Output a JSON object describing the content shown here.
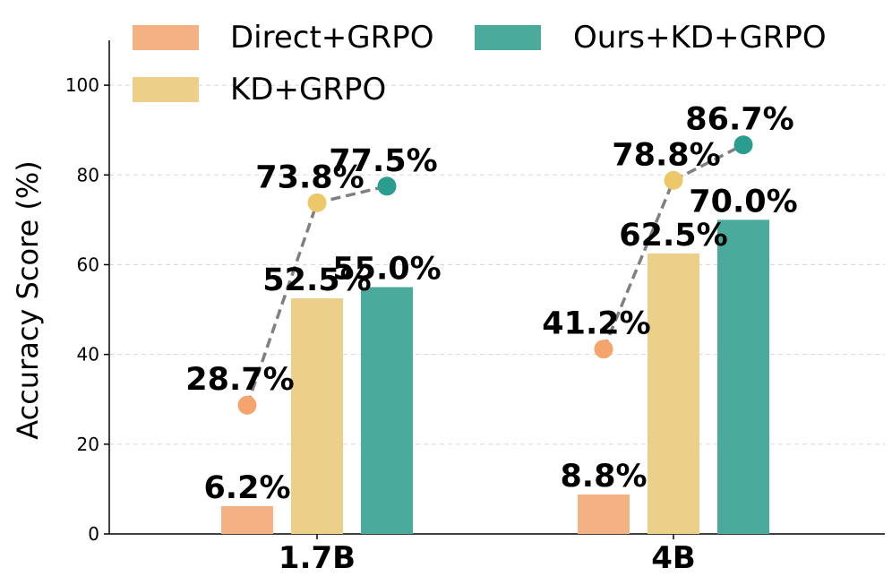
{
  "chart_data": {
    "type": "bar",
    "title": "",
    "xlabel": "",
    "ylabel": "Accuracy Score (%)",
    "ylim": [
      0,
      110
    ],
    "yticks": [
      0,
      20,
      40,
      60,
      80,
      100
    ],
    "grid": "y-dashed",
    "categories": [
      "1.7B",
      "4B"
    ],
    "bar_series": [
      {
        "name": "Direct+GRPO",
        "color": "#f4b183",
        "values": [
          6.2,
          8.8
        ],
        "labels": [
          "6.2%",
          "8.8%"
        ]
      },
      {
        "name": "KD+GRPO",
        "color": "#ecd08a",
        "values": [
          52.5,
          62.5
        ],
        "labels": [
          "52.5%",
          "62.5%"
        ]
      },
      {
        "name": "Ours+KD+GRPO",
        "color": "#4aaa9c",
        "values": [
          55.0,
          70.0
        ],
        "labels": [
          "55.0%",
          "70.0%"
        ]
      }
    ],
    "point_series": [
      {
        "name": "Direct+GRPO",
        "color": "#f4a46c",
        "values": [
          28.7,
          41.2
        ],
        "labels": [
          "28.7%",
          "41.2%"
        ]
      },
      {
        "name": "KD+GRPO",
        "color": "#ecc86a",
        "values": [
          73.8,
          78.8
        ],
        "labels": [
          "73.8%",
          "78.8%"
        ]
      },
      {
        "name": "Ours+KD+GRPO",
        "color": "#2a9d8f",
        "values": [
          77.5,
          86.7
        ],
        "labels": [
          "77.5%",
          "86.7%"
        ]
      }
    ],
    "trend_line": {
      "style": "dashed",
      "color": "#808080"
    },
    "legend": {
      "placement": "top",
      "entries": [
        "Direct+GRPO",
        "KD+GRPO",
        "Ours+KD+GRPO"
      ]
    }
  }
}
